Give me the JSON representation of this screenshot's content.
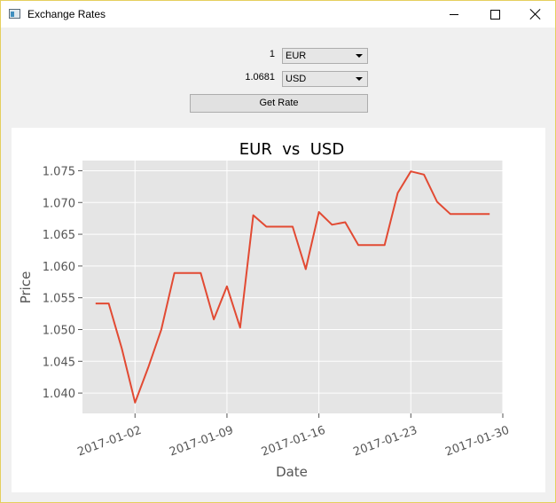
{
  "window": {
    "title": "Exchange Rates",
    "icon": "app-window-icon",
    "controls": [
      "minimize-icon",
      "maximize-icon",
      "close-icon"
    ]
  },
  "converter": {
    "from_amount": "1",
    "from_currency": "EUR",
    "to_amount": "1.0681",
    "to_currency": "USD",
    "button_label": "Get Rate"
  },
  "chart_data": {
    "type": "line",
    "title": "EUR  vs  USD",
    "xlabel": "Date",
    "ylabel": "Price",
    "x": [
      "2016-12-30",
      "2016-12-31",
      "2017-01-01",
      "2017-01-02",
      "2017-01-03",
      "2017-01-04",
      "2017-01-05",
      "2017-01-06",
      "2017-01-07",
      "2017-01-08",
      "2017-01-09",
      "2017-01-10",
      "2017-01-11",
      "2017-01-12",
      "2017-01-13",
      "2017-01-14",
      "2017-01-15",
      "2017-01-16",
      "2017-01-17",
      "2017-01-18",
      "2017-01-19",
      "2017-01-20",
      "2017-01-21",
      "2017-01-22",
      "2017-01-23",
      "2017-01-24",
      "2017-01-25",
      "2017-01-26",
      "2017-01-27",
      "2017-01-28",
      "2017-01-29"
    ],
    "series": [
      {
        "color": "#e24a33",
        "values": [
          1.0541,
          1.0541,
          1.047,
          1.0385,
          1.044,
          1.05,
          1.0589,
          1.0589,
          1.0589,
          1.0516,
          1.0568,
          1.0503,
          1.068,
          1.0662,
          1.0662,
          1.0662,
          1.0595,
          1.0685,
          1.0665,
          1.0669,
          1.0633,
          1.0633,
          1.0633,
          1.0715,
          1.0749,
          1.0744,
          1.0701,
          1.0682,
          1.0682,
          1.0682,
          1.0682
        ]
      }
    ],
    "xlim": [
      "2016-12-29",
      "2017-01-30"
    ],
    "ylim": [
      1.0368,
      1.0766
    ],
    "x_ticks": [
      "2017-01-02",
      "2017-01-09",
      "2017-01-16",
      "2017-01-23",
      "2017-01-30"
    ],
    "y_ticks": [
      "1.040",
      "1.045",
      "1.050",
      "1.055",
      "1.060",
      "1.065",
      "1.070",
      "1.075"
    ],
    "grid": true,
    "plot_background": "#e5e5e5"
  }
}
